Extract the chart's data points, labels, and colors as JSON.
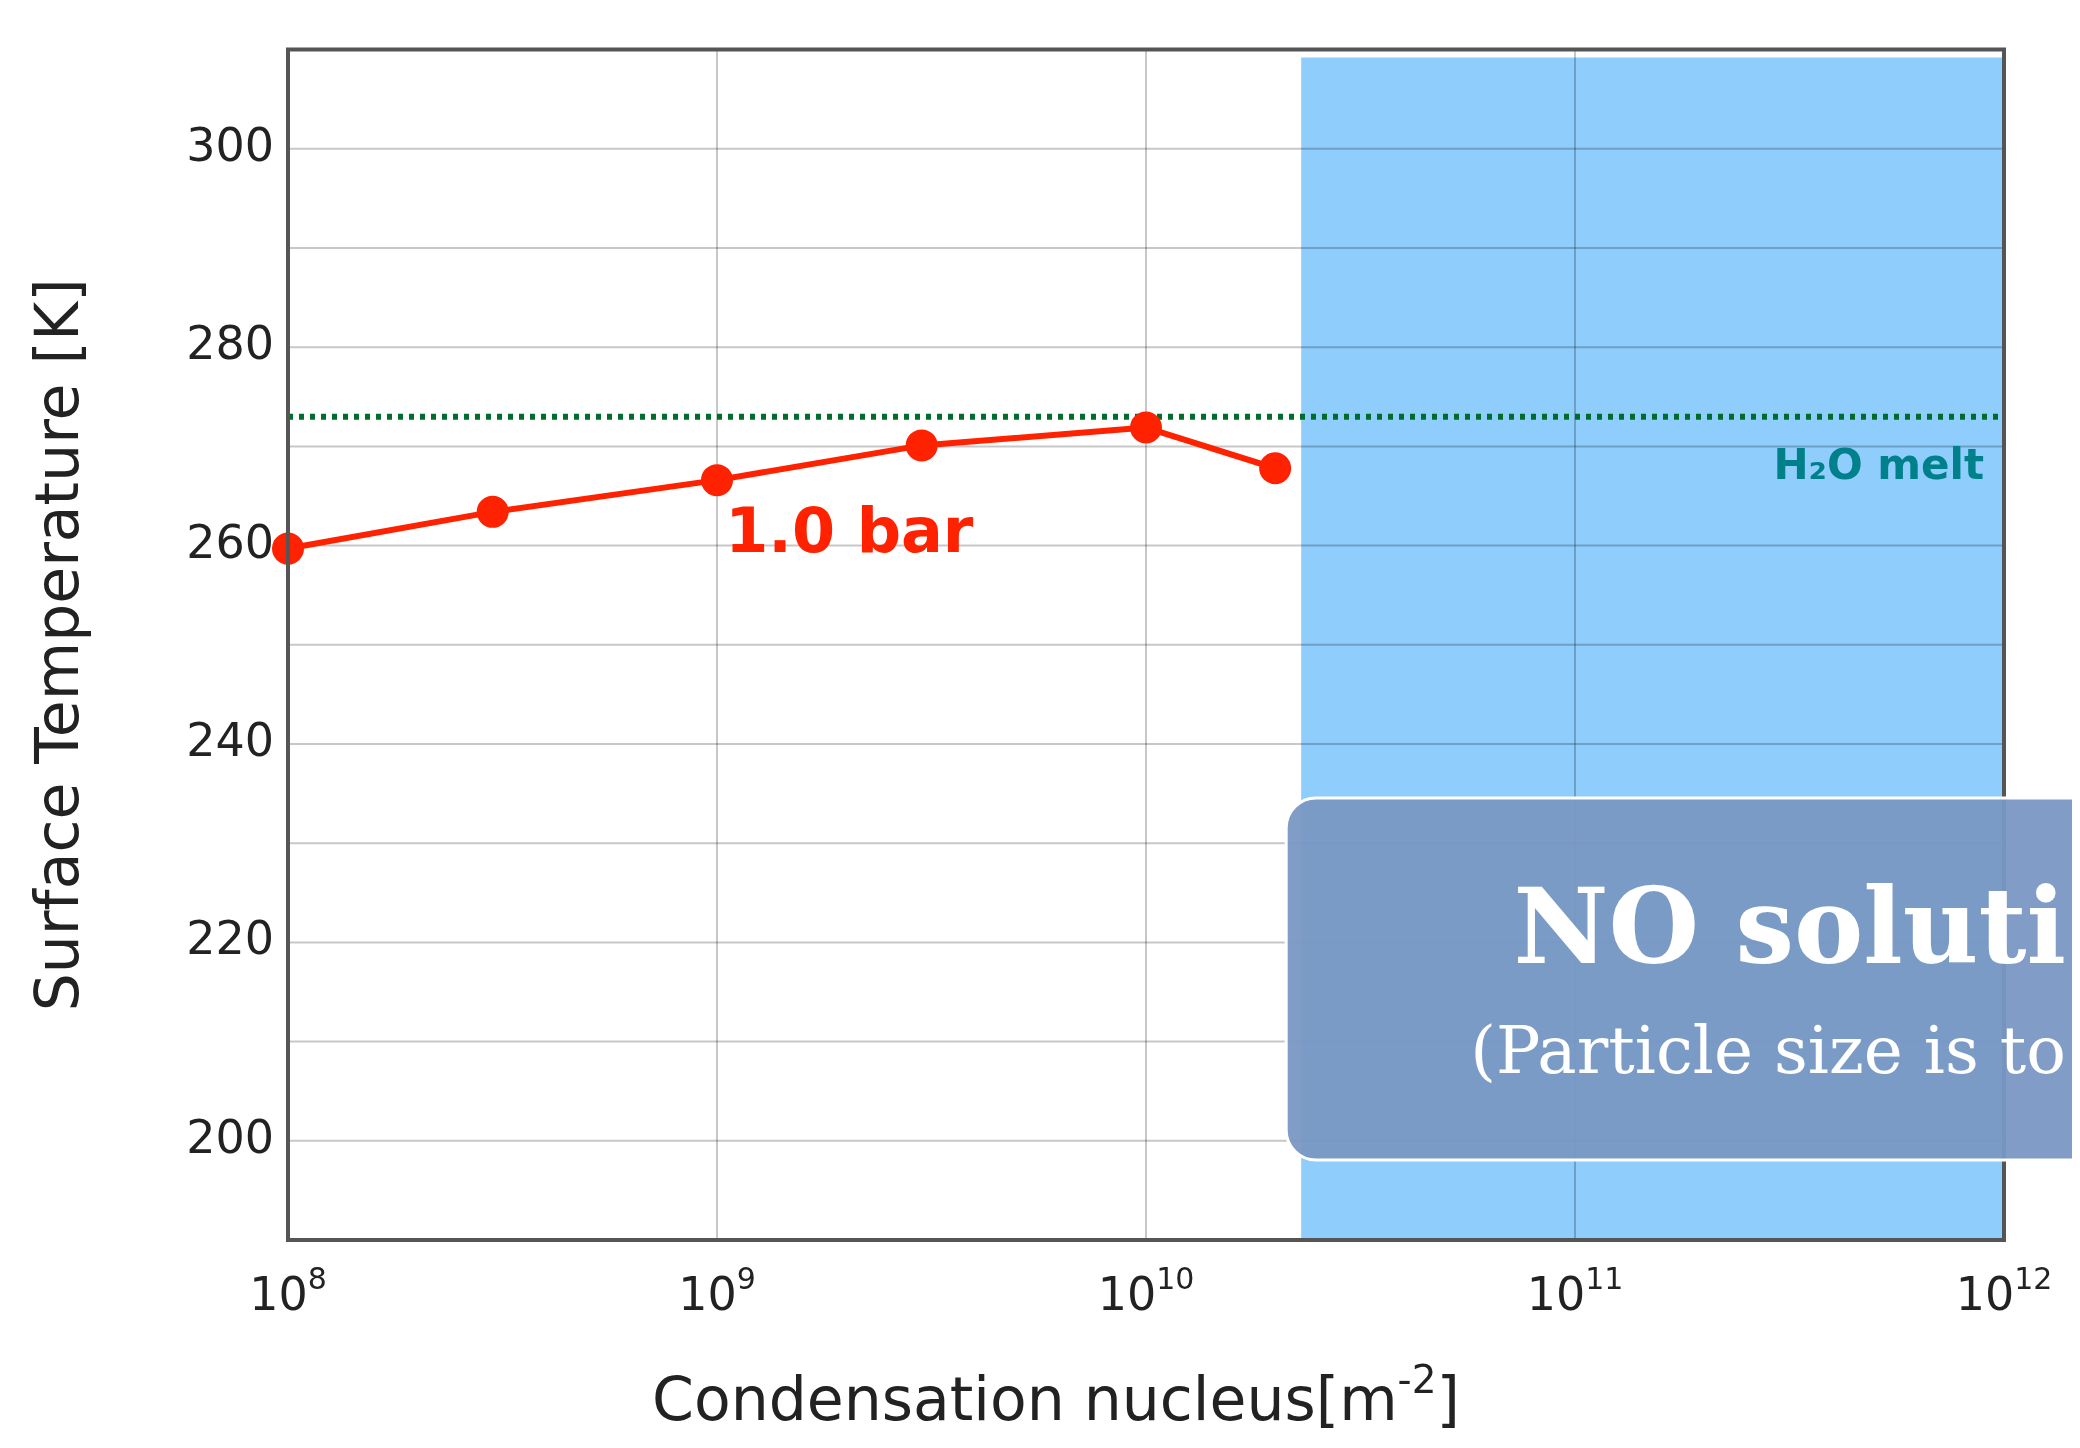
{
  "chart_data": {
    "type": "line",
    "xlabel": "Condensation nucleus[m$^{-2}$]",
    "ylabel": "Surface Temperature [K]",
    "log": "x",
    "xlim": [
      100000000,
      1000000000000
    ],
    "xticks": [
      {
        "value": 100000000,
        "label": "10$^{8}$"
      },
      {
        "value": 1000000000,
        "label": "10$^{9}$"
      },
      {
        "value": 10000000000,
        "label": "10$^{10}$"
      },
      {
        "value": 100000000000,
        "label": "10$^{11}$"
      },
      {
        "value": 1000000000000,
        "label": "10$^{12}$"
      }
    ],
    "ylim": [
      190,
      310
    ],
    "yticks": [
      200,
      {
        "value": 210,
        "label": null
      },
      220,
      {
        "value": 230,
        "label": null
      },
      240,
      {
        "value": 250,
        "label": null
      },
      260,
      {
        "value": 270,
        "label": null
      },
      280,
      {
        "value": 290,
        "label": null
      },
      300
    ],
    "grid": true,
    "marker": "circle",
    "line_style": "solid",
    "legend": false,
    "series": [
      {
        "name": "1.0 bar",
        "color": "#ff2200",
        "x": [
          100000000,
          300000000,
          1000000000,
          3000000000,
          10000000000,
          20000000000
        ],
        "values": [
          259.7,
          263.4,
          266.6,
          270.1,
          271.9,
          267.8
        ]
      }
    ],
    "ref_lines": [
      {
        "axis": "y",
        "value": 273,
        "label": "H₂O melt",
        "color": "#006d2c",
        "line_style": "dotted"
      }
    ],
    "bands": [
      {
        "axis": "x",
        "from": 23000000000,
        "to": 1000000000000,
        "color": "#8ecdfc"
      }
    ],
    "annotations": [
      "NO soluti",
      "(Particle size is to"
    ]
  }
}
